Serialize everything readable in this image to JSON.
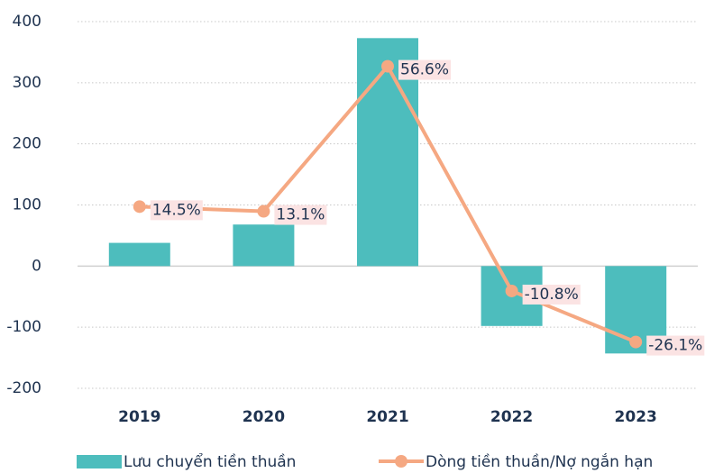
{
  "chart_data": {
    "type": "bar-line",
    "categories": [
      "2019",
      "2020",
      "2021",
      "2022",
      "2023"
    ],
    "series": [
      {
        "name": "Lưu chuyển tiền thuần",
        "type": "bar",
        "color": "#4dbdbd",
        "values": [
          38,
          68,
          373,
          -98,
          -143
        ]
      },
      {
        "name": "Dòng tiền thuần/Nợ ngắn hạn",
        "type": "line",
        "axis": "y2",
        "color": "#f5a882",
        "values": [
          14.5,
          13.1,
          56.6,
          -10.8,
          -26.1
        ],
        "value_labels": [
          "14.5%",
          "13.1%",
          "56.6%",
          "-10.8%",
          "-26.1%"
        ]
      }
    ],
    "ylim": [
      -200,
      400
    ],
    "yticks": [
      -200,
      -100,
      0,
      100,
      200,
      300,
      400
    ],
    "y2lim": [
      -40,
      70
    ],
    "grid": true,
    "legend": "bottom"
  }
}
